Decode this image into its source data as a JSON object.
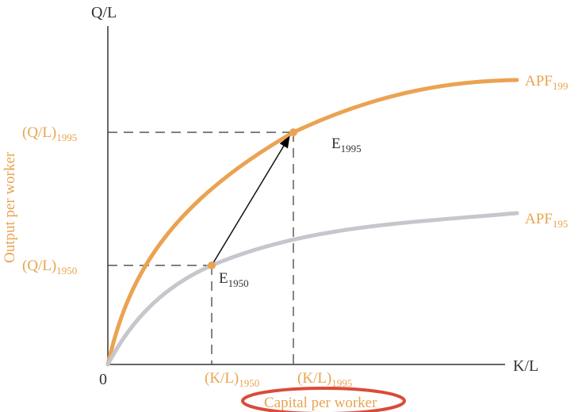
{
  "chart_data": {
    "type": "line",
    "y_axis_label": "Q/L",
    "x_axis_label": "K/L",
    "y_title": "Output per worker",
    "x_title": "Capital per worker",
    "origin_label": "0",
    "series": [
      {
        "name_main": "APF",
        "name_sub": "199",
        "color": "#EAA352"
      },
      {
        "name_main": "APF",
        "name_sub": "195",
        "color": "#C6C7CC"
      }
    ],
    "points": [
      {
        "name_main": "E",
        "name_sub": "1995",
        "x_tick_main": "(K/L)",
        "x_tick_sub": "1995",
        "y_tick_main": "(Q/L)",
        "y_tick_sub": "1995"
      },
      {
        "name_main": "E",
        "name_sub": "1950",
        "x_tick_main": "(K/L)",
        "x_tick_sub": "1950",
        "y_tick_main": "(Q/L)",
        "y_tick_sub": "1950"
      }
    ],
    "colors": {
      "orange": "#EAA352",
      "gray": "#C6C7CC",
      "axis": "#333333",
      "red_ellipse": "#D94B3A"
    }
  }
}
